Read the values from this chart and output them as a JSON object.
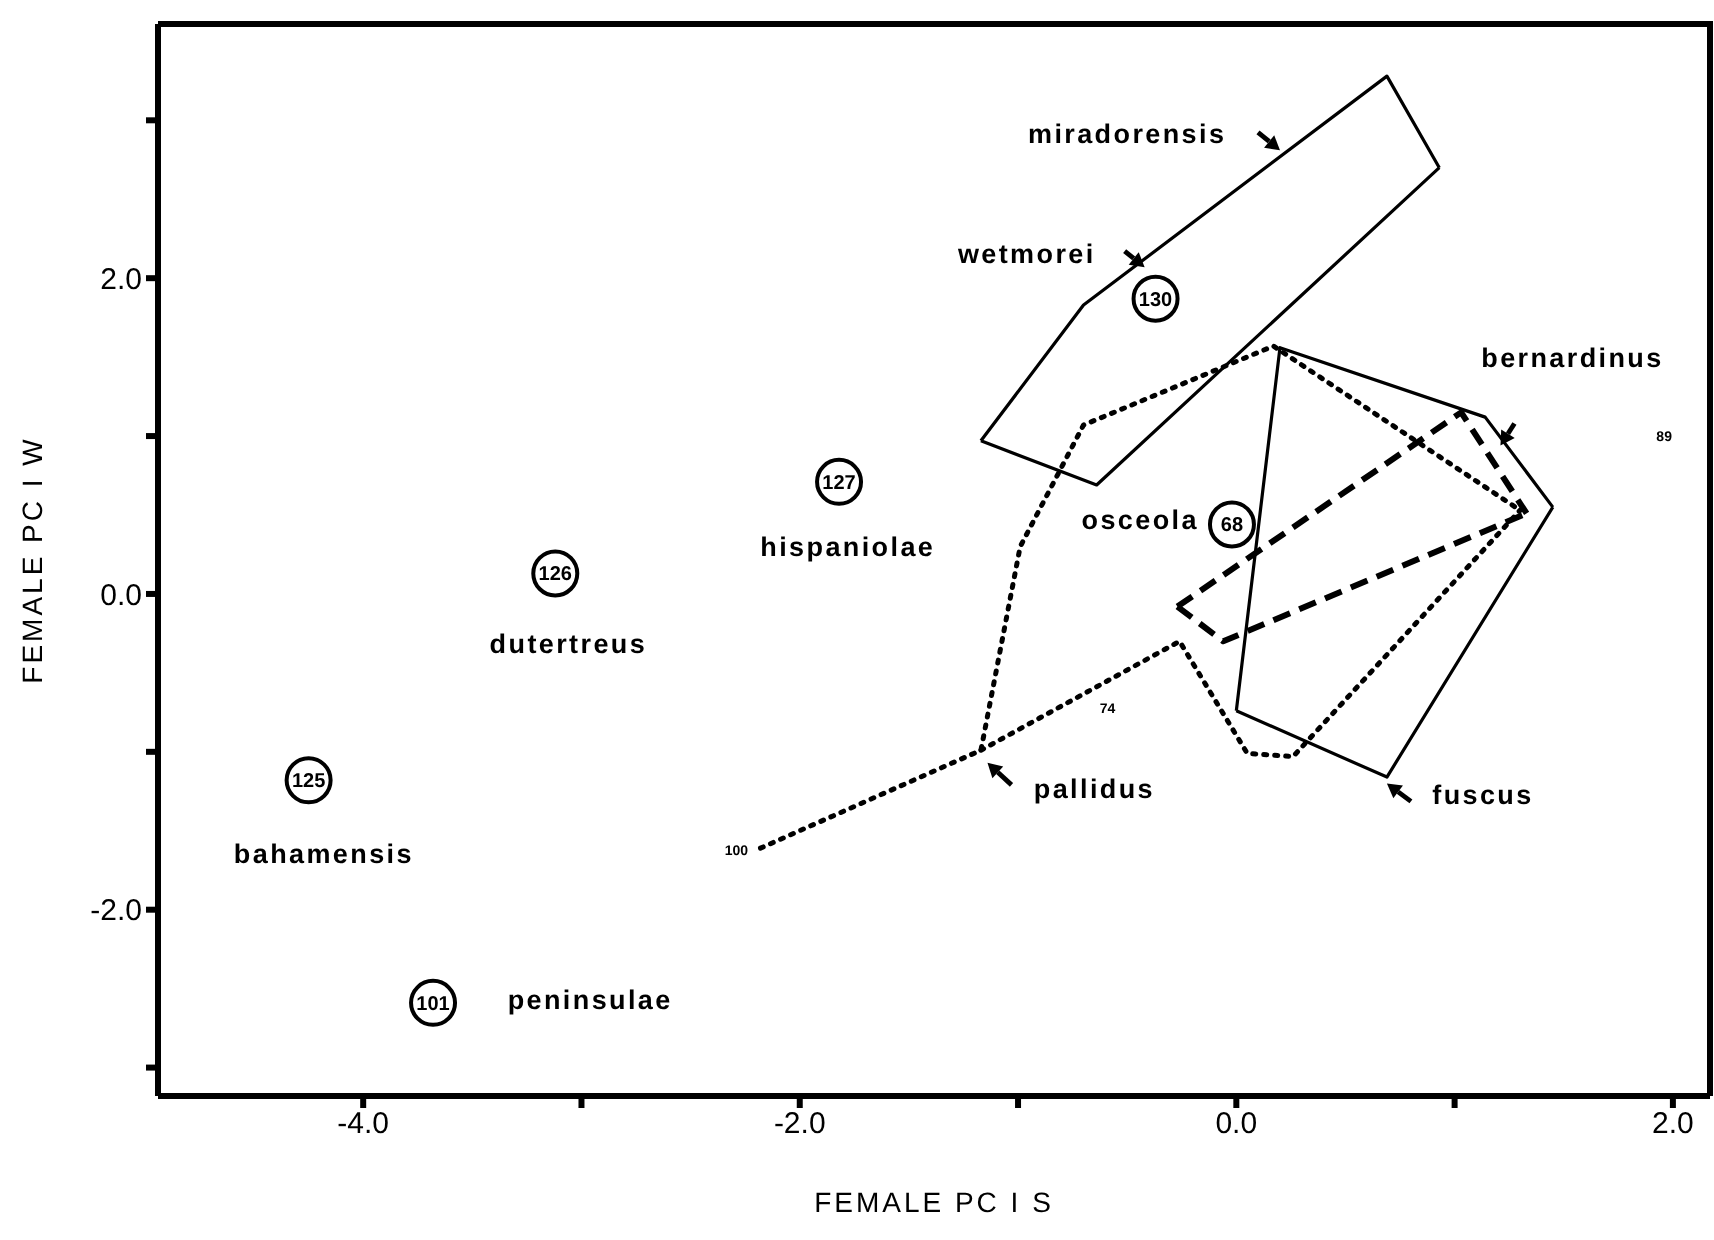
{
  "chart_data": {
    "type": "scatter",
    "xlabel": "FEMALE PC I S",
    "ylabel": "FEMALE PC I W",
    "xlim": [
      -4.94,
      2.17
    ],
    "ylim": [
      -3.18,
      3.61
    ],
    "xticks": [
      {
        "value": -4,
        "label": "-4.0"
      },
      {
        "value": -3,
        "label": null
      },
      {
        "value": -2,
        "label": "-2.0"
      },
      {
        "value": -1,
        "label": null
      },
      {
        "value": 0,
        "label": "0.0"
      },
      {
        "value": 1,
        "label": null
      },
      {
        "value": 2,
        "label": "2.0"
      }
    ],
    "yticks": [
      {
        "value": -3,
        "label": null
      },
      {
        "value": -2,
        "label": "-2.0"
      },
      {
        "value": -1,
        "label": null
      },
      {
        "value": 0,
        "label": "0.0"
      },
      {
        "value": 1,
        "label": null
      },
      {
        "value": 2,
        "label": "2.0"
      },
      {
        "value": 3,
        "label": null
      }
    ],
    "series": [
      {
        "color": "#000000",
        "marker": "circle",
        "x": [
          -0.37,
          -0.02,
          -1.82,
          -3.12,
          -4.25,
          -3.68
        ],
        "values": [
          1.87,
          0.44,
          0.71,
          0.13,
          -1.18,
          -2.59
        ]
      },
      {
        "type": "line",
        "color": "#000000",
        "marker": "none",
        "line_style": "solid",
        "x": [
          -1.17,
          -0.7,
          0.69,
          0.93
        ],
        "values": [
          0.97,
          1.83,
          3.28,
          2.7
        ]
      },
      {
        "type": "line",
        "color": "#000000",
        "marker": "none",
        "line_style": "solid",
        "x": [
          -1.17,
          -0.64,
          0.93
        ],
        "values": [
          0.97,
          0.69,
          2.7
        ]
      },
      {
        "type": "line",
        "color": "#000000",
        "marker": "none",
        "line_style": "solid",
        "x": [
          0.0,
          0.2,
          1.14,
          1.45
        ],
        "values": [
          -0.74,
          1.56,
          1.12,
          0.55
        ]
      },
      {
        "type": "line",
        "color": "#000000",
        "marker": "none",
        "line_style": "solid",
        "x": [
          0.0,
          0.69,
          1.45
        ],
        "values": [
          -0.74,
          -1.16,
          0.55
        ]
      },
      {
        "type": "line",
        "color": "#000000",
        "marker": "none",
        "line_style": "dashed",
        "x": [
          -0.27,
          1.03,
          1.33
        ],
        "values": [
          -0.08,
          1.15,
          0.51
        ]
      },
      {
        "type": "line",
        "color": "#000000",
        "marker": "none",
        "line_style": "dashed",
        "x": [
          -0.27,
          -0.06,
          1.33
        ],
        "values": [
          -0.08,
          -0.3,
          0.51
        ]
      },
      {
        "type": "line",
        "color": "#000000",
        "marker": "none",
        "line_style": "dotted",
        "x": [
          -2.18,
          -1.17,
          -0.99,
          -0.7,
          0.17,
          1.3
        ],
        "values": [
          -1.61,
          -0.99,
          0.3,
          1.07,
          1.57,
          0.53
        ]
      },
      {
        "type": "line",
        "color": "#000000",
        "marker": "none",
        "line_style": "dotted",
        "x": [
          -1.17,
          -0.26,
          0.05,
          0.26,
          1.3
        ],
        "values": [
          -0.99,
          -0.3,
          -1.01,
          -1.03,
          0.53
        ]
      }
    ],
    "annotations": [
      {
        "text": "130",
        "x": -0.37,
        "y": 1.87
      },
      {
        "text": "68",
        "x": -0.02,
        "y": 0.44
      },
      {
        "text": "127",
        "x": -1.82,
        "y": 0.71
      },
      {
        "text": "126",
        "x": -3.12,
        "y": 0.13
      },
      {
        "text": "125",
        "x": -4.25,
        "y": -1.18
      },
      {
        "text": "101",
        "x": -3.68,
        "y": -2.59
      },
      "miradorensis",
      "wetmorei",
      "bernardinus",
      "osceola",
      "hispaniolae",
      "dutertreus",
      "bahamensis",
      "peninsulae",
      "pallidus",
      "fuscus",
      "100",
      "74",
      "89"
    ]
  }
}
